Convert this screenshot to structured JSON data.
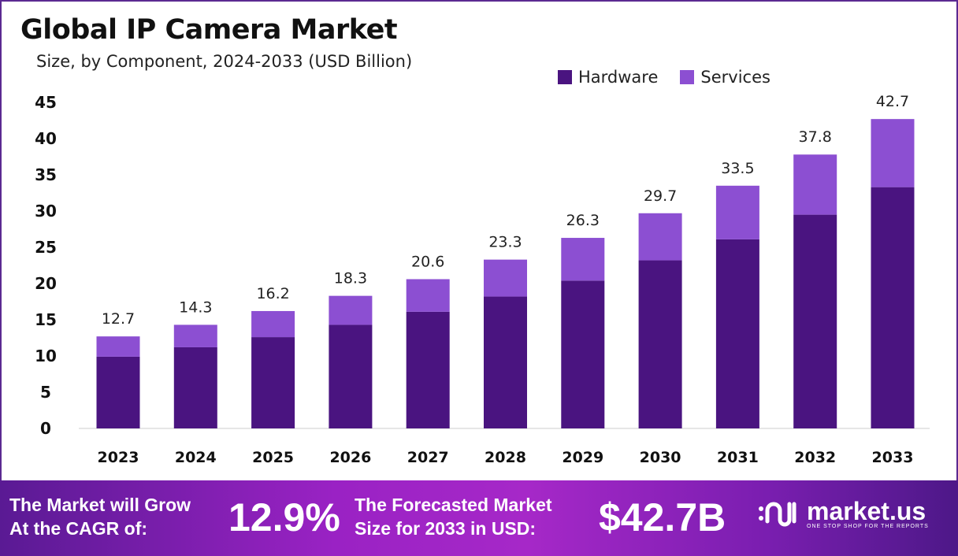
{
  "header": {
    "title": "Global IP Camera Market",
    "subtitle": "Size, by Component, 2024-2033 (USD Billion)"
  },
  "chart_data": {
    "type": "bar",
    "stacked": true,
    "title": "Global IP Camera Market",
    "subtitle": "Size, by Component, 2024-2033 (USD Billion)",
    "categories": [
      "2023",
      "2024",
      "2025",
      "2026",
      "2027",
      "2028",
      "2029",
      "2030",
      "2031",
      "2032",
      "2033"
    ],
    "series": [
      {
        "name": "Hardware",
        "color": "#4a1480",
        "values": [
          9.9,
          11.2,
          12.6,
          14.3,
          16.1,
          18.2,
          20.4,
          23.2,
          26.1,
          29.5,
          33.3
        ]
      },
      {
        "name": "Services",
        "color": "#8c4fd2",
        "values": [
          2.8,
          3.1,
          3.6,
          4.0,
          4.5,
          5.1,
          5.9,
          6.5,
          7.4,
          8.3,
          9.4
        ]
      }
    ],
    "totals": [
      "12.7",
      "14.3",
      "16.2",
      "18.3",
      "20.6",
      "23.3",
      "26.3",
      "29.7",
      "33.5",
      "37.8",
      "42.7"
    ],
    "ylim": [
      0,
      45
    ],
    "yticks": [
      "0",
      "5",
      "10",
      "15",
      "20",
      "25",
      "30",
      "35",
      "40",
      "45"
    ],
    "grid": false,
    "legend_position": "top-right"
  },
  "footer": {
    "cagr_label_1": "The Market will Grow",
    "cagr_label_2": "At the CAGR of:",
    "cagr_value": "12.9%",
    "forecast_label_1": "The Forecasted Market",
    "forecast_label_2": "Size for 2033 in USD:",
    "forecast_value": "$42.7B",
    "logo_name": "market.us",
    "logo_tagline": "ONE STOP SHOP FOR THE REPORTS"
  }
}
